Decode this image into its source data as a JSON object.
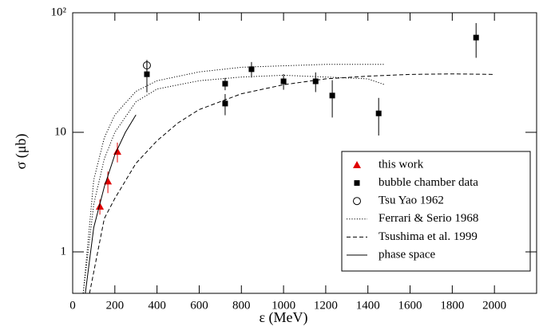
{
  "chart_data": {
    "type": "scatter",
    "x_label": "ε (MeV)",
    "y_label": "σ (μb)",
    "xlim": [
      0,
      2200
    ],
    "ylim": [
      0.45,
      100
    ],
    "log_y": true,
    "xticks": [
      0,
      200,
      400,
      600,
      800,
      1000,
      1200,
      1400,
      1600,
      1800,
      2000
    ],
    "yticks": [
      1,
      10,
      {
        "value": 100,
        "label": "10²"
      }
    ],
    "legend": "lower right",
    "series": [
      {
        "name": "this work",
        "color": "#e00000",
        "marker": "triangle",
        "x": [
          129,
          167,
          212
        ],
        "values": [
          2.4,
          3.9,
          6.9
        ],
        "errors": [
          0.35,
          0.8,
          1.3
        ]
      },
      {
        "name": "bubble chamber data",
        "color": "#000000",
        "marker": "square",
        "x": [
          352,
          723,
          723,
          848,
          1000,
          1152,
          1231,
          1451,
          1913
        ],
        "values": [
          30.6,
          25.5,
          17.4,
          33.7,
          26.7,
          26.7,
          20.3,
          14.4,
          62
        ],
        "errors": [
          9,
          3,
          3.5,
          5,
          4,
          5,
          7,
          5,
          20
        ]
      },
      {
        "name": "Tsu Yao 1962",
        "color": "#000000",
        "marker": "circle-open",
        "x": [
          352
        ],
        "values": [
          36.3
        ],
        "errors": [
          4
        ]
      },
      {
        "name": "Ferrari & Serio 1968",
        "color": "#000000",
        "line": "dotted",
        "x": [
          50,
          100,
          150,
          200,
          300,
          400,
          600,
          800,
          1000,
          1200,
          1400,
          1480
        ],
        "values": [
          0.45,
          4,
          9,
          14,
          22,
          27,
          32,
          35,
          36,
          37,
          37,
          37
        ],
        "values_low": [
          0.45,
          2.5,
          6,
          10,
          18,
          23,
          27,
          29,
          30,
          29,
          28,
          25
        ]
      },
      {
        "name": "Tsushima et al. 1999",
        "color": "#000000",
        "line": "dashed",
        "x": [
          80,
          150,
          200,
          300,
          400,
          500,
          600,
          800,
          1000,
          1200,
          1400,
          1600,
          1800,
          2000
        ],
        "values": [
          0.45,
          1.9,
          2.8,
          5.5,
          8.5,
          12,
          15.5,
          21,
          25,
          28,
          29.5,
          30.5,
          30.8,
          30.5
        ]
      },
      {
        "name": "phase space",
        "color": "#000000",
        "line": "solid",
        "x": [
          60,
          100,
          150,
          200,
          250,
          300
        ],
        "values": [
          0.45,
          1.6,
          3.5,
          6.5,
          10,
          14
        ]
      }
    ]
  }
}
